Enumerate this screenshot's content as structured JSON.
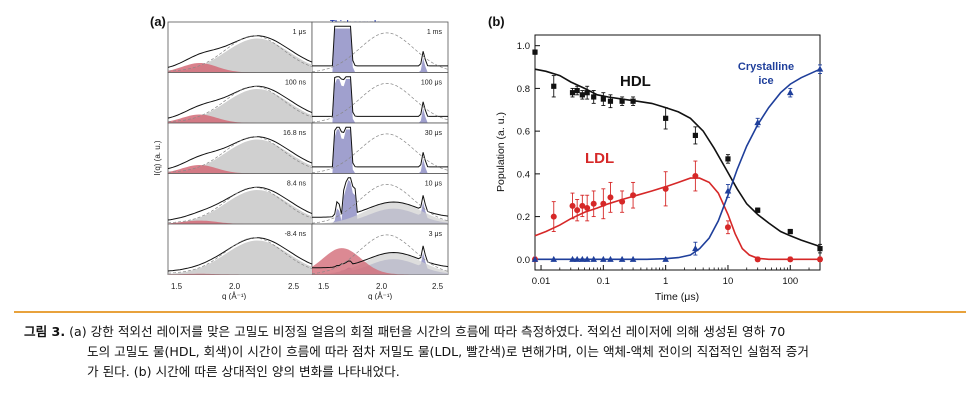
{
  "panel_a": {
    "label": "(a)",
    "header": "Thick sample",
    "ylabel": "I(q) (a. u.)",
    "xlabel": "q (Å⁻¹)",
    "xticks": [
      "1.5",
      "2.0",
      "2.5",
      "1.5",
      "2.0",
      "2.5"
    ],
    "left_times": [
      "1 μs",
      "100 ns",
      "16.8 ns",
      "8.4 ns",
      "-8.4 ns"
    ],
    "right_times": [
      "1 ms",
      "100 μs",
      "30 μs",
      "10 μs",
      "3 μs"
    ]
  },
  "panel_b": {
    "label": "(b)",
    "annotations": {
      "hdl": "HDL",
      "ldl": "LDL",
      "ice_line1": "Crystalline",
      "ice_line2": "ice"
    }
  },
  "chart_data": {
    "type": "scatter",
    "xlabel": "Time (μs)",
    "ylabel": "Population (a. u.)",
    "xscale": "log",
    "xlim": [
      0.008,
      300
    ],
    "ylim": [
      -0.05,
      1.05
    ],
    "xticks": [
      0.01,
      0.1,
      1,
      10,
      100
    ],
    "xtick_labels": [
      "0.01",
      "0.1",
      "1",
      "10",
      "100"
    ],
    "yticks": [
      0.0,
      0.2,
      0.4,
      0.6,
      0.8,
      1.0
    ],
    "ytick_labels": [
      "0.0",
      "0.2",
      "0.4",
      "0.6",
      "0.8",
      "1.0"
    ],
    "series": [
      {
        "name": "HDL",
        "color": "#111111",
        "marker": "square",
        "x": [
          0.008,
          0.016,
          0.032,
          0.038,
          0.046,
          0.055,
          0.07,
          0.1,
          0.13,
          0.2,
          0.3,
          1.0,
          3.0,
          10,
          30,
          100,
          300
        ],
        "y": [
          0.97,
          0.81,
          0.78,
          0.79,
          0.77,
          0.78,
          0.76,
          0.75,
          0.74,
          0.74,
          0.74,
          0.66,
          0.58,
          0.47,
          0.23,
          0.13,
          0.05
        ],
        "err": [
          0.01,
          0.05,
          0.02,
          0.02,
          0.02,
          0.03,
          0.03,
          0.03,
          0.03,
          0.02,
          0.02,
          0.05,
          0.04,
          0.02,
          0.01,
          0.01,
          0.02
        ],
        "fit_x": [
          0.008,
          0.012,
          0.02,
          0.03,
          0.05,
          0.08,
          0.12,
          0.2,
          0.35,
          0.6,
          1,
          1.6,
          2.5,
          4,
          6,
          9,
          14,
          20,
          30,
          45,
          70,
          100,
          150,
          300
        ],
        "fit_y": [
          0.89,
          0.88,
          0.86,
          0.83,
          0.8,
          0.77,
          0.76,
          0.75,
          0.74,
          0.73,
          0.71,
          0.69,
          0.66,
          0.6,
          0.52,
          0.43,
          0.33,
          0.26,
          0.21,
          0.17,
          0.13,
          0.11,
          0.09,
          0.06
        ]
      },
      {
        "name": "LDL",
        "color": "#d62828",
        "marker": "circle",
        "x": [
          0.008,
          0.016,
          0.032,
          0.038,
          0.046,
          0.055,
          0.07,
          0.1,
          0.13,
          0.2,
          0.3,
          1.0,
          3.0,
          10,
          30,
          100,
          300
        ],
        "y": [
          0.0,
          0.2,
          0.25,
          0.23,
          0.25,
          0.24,
          0.26,
          0.26,
          0.29,
          0.27,
          0.3,
          0.33,
          0.39,
          0.15,
          0.0,
          0.0,
          0.0
        ],
        "err": [
          0.01,
          0.07,
          0.06,
          0.05,
          0.05,
          0.06,
          0.06,
          0.07,
          0.07,
          0.05,
          0.06,
          0.08,
          0.07,
          0.03,
          0.01,
          0.01,
          0.01
        ],
        "fit_x": [
          0.008,
          0.012,
          0.02,
          0.03,
          0.05,
          0.08,
          0.12,
          0.2,
          0.35,
          0.6,
          1,
          1.6,
          2.5,
          3.5,
          5,
          7,
          10,
          13,
          17,
          22,
          30,
          45,
          70,
          100,
          300
        ],
        "fit_y": [
          0.11,
          0.13,
          0.16,
          0.19,
          0.22,
          0.24,
          0.26,
          0.28,
          0.3,
          0.32,
          0.34,
          0.36,
          0.38,
          0.38,
          0.36,
          0.31,
          0.21,
          0.12,
          0.05,
          0.02,
          0.005,
          0.0,
          0.0,
          0.0,
          0.0
        ]
      },
      {
        "name": "Crystalline ice",
        "color": "#1f3f9b",
        "marker": "triangle",
        "x": [
          0.008,
          0.016,
          0.032,
          0.038,
          0.046,
          0.055,
          0.07,
          0.1,
          0.13,
          0.2,
          0.3,
          1.0,
          3.0,
          10,
          30,
          100,
          300
        ],
        "y": [
          0.0,
          0.0,
          0.0,
          0.0,
          0.0,
          0.0,
          0.0,
          0.0,
          0.0,
          0.0,
          0.0,
          0.0,
          0.05,
          0.32,
          0.64,
          0.78,
          0.89
        ],
        "err": [
          0.005,
          0.005,
          0.005,
          0.005,
          0.005,
          0.005,
          0.005,
          0.005,
          0.005,
          0.005,
          0.005,
          0.005,
          0.03,
          0.03,
          0.02,
          0.02,
          0.02
        ],
        "fit_x": [
          0.008,
          0.1,
          0.5,
          1,
          1.6,
          2.5,
          3.5,
          5,
          7,
          10,
          14,
          20,
          30,
          45,
          70,
          100,
          150,
          300
        ],
        "fit_y": [
          0.0,
          0.0,
          0.0,
          0.003,
          0.008,
          0.02,
          0.05,
          0.1,
          0.18,
          0.3,
          0.42,
          0.53,
          0.63,
          0.71,
          0.78,
          0.82,
          0.85,
          0.89
        ]
      }
    ]
  },
  "caption": {
    "lead": "그림 3.",
    "line1": "(a) 강한 적외선 레이저를 맞은 고밀도 비정질 얼음의 회절 패턴을 시간의 흐름에 따라 측정하였다. 적외선 레이저에 의해 생성된 영하 70",
    "line2": "도의 고밀도 물(HDL, 회색)이 시간이 흐름에 따라 점차 저밀도 물(LDL, 빨간색)로 변해가며, 이는 액체-액체 전이의 직접적인 실험적 증거",
    "line3": "가 된다. (b) 시간에 따른 상대적인 양의 변화를 나타내었다."
  }
}
